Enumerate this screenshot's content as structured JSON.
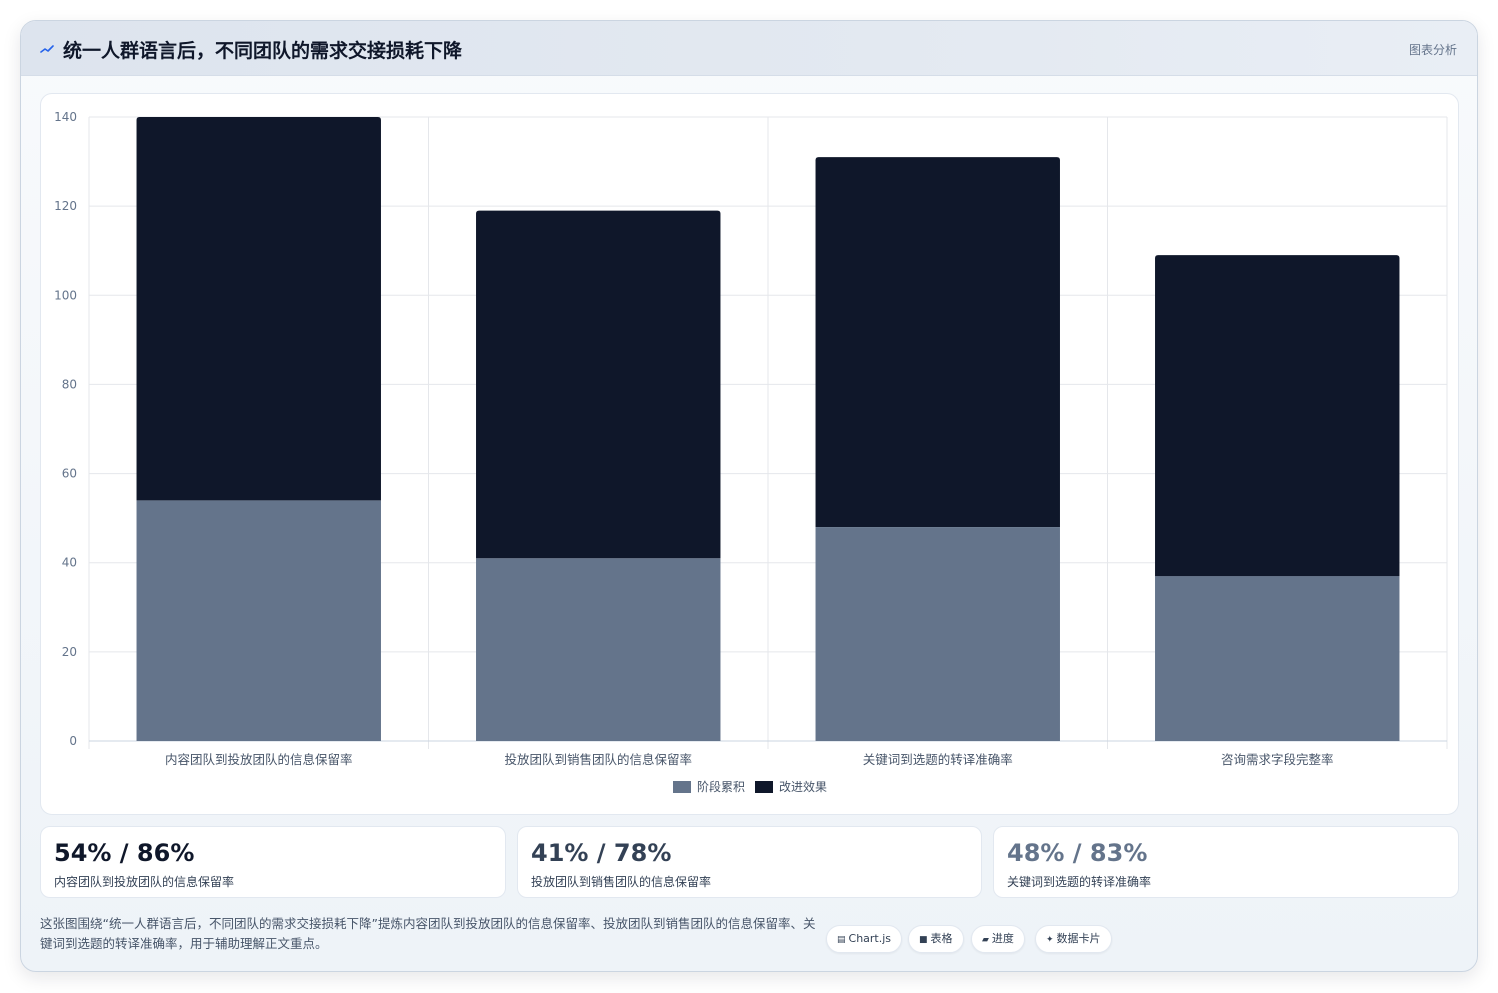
{
  "header": {
    "title": "统一人群语言后，不同团队的需求交接损耗下降",
    "tag": "图表分析"
  },
  "chart_data": {
    "type": "bar",
    "stacked": true,
    "categories": [
      "内容团队到投放团队的信息保留率",
      "投放团队到销售团队的信息保留率",
      "关键词到选题的转译准确率",
      "咨询需求字段完整率"
    ],
    "series": [
      {
        "name": "阶段累积",
        "color": "#64748b",
        "values": [
          54,
          41,
          48,
          37
        ]
      },
      {
        "name": "改进效果",
        "color": "#0f172a",
        "values": [
          86,
          78,
          83,
          72
        ]
      }
    ],
    "ylim": [
      0,
      140
    ],
    "yticks": [
      0,
      20,
      40,
      60,
      80,
      100,
      120,
      140
    ],
    "grid": true,
    "legend": "bottom"
  },
  "stats": [
    {
      "value": "54% / 86%",
      "label": "内容团队到投放团队的信息保留率",
      "color": "#0f172a"
    },
    {
      "value": "41% / 78%",
      "label": "投放团队到销售团队的信息保留率",
      "color": "#334155"
    },
    {
      "value": "48% / 83%",
      "label": "关键词到选题的转译准确率",
      "color": "#64748b"
    }
  ],
  "caption": "这张图围绕“统一人群语言后，不同团队的需求交接损耗下降”提炼内容团队到投放团队的信息保留率、投放团队到销售团队的信息保留率、关键词到选题的转译准确率，用于辅助理解正文重点。",
  "chips": [
    {
      "glyph": "▤",
      "label": "Chart.js"
    },
    {
      "glyph": "■",
      "label": "表格"
    },
    {
      "glyph": "▰",
      "label": "进度"
    },
    {
      "glyph": "✦",
      "label": "数据卡片"
    }
  ]
}
